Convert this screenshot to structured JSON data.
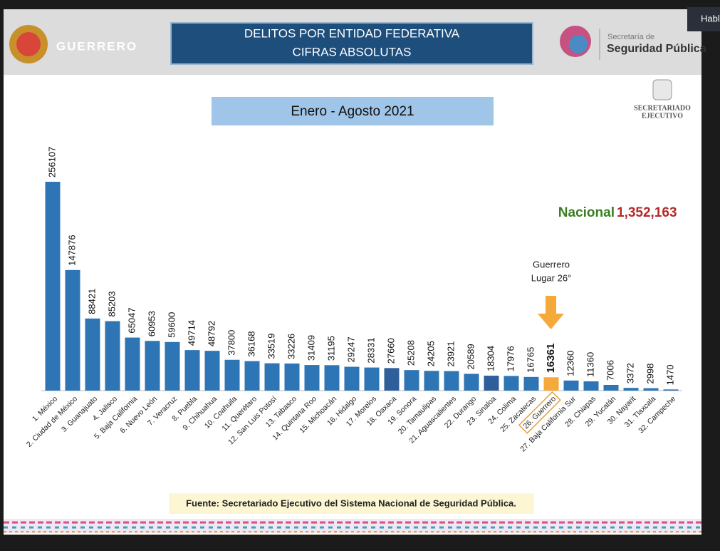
{
  "header": {
    "state_name": "GUERRERO",
    "title_line1": "DELITOS POR ENTIDAD FEDERATIVA",
    "title_line2": "CIFRAS ABSOLUTAS",
    "ssp_small": "Secretaría de",
    "ssp_big": "Seguridad Pública",
    "se_line1": "SECRETARIADO",
    "se_line2": "EJECUTIVO",
    "window_tab": "Habl"
  },
  "chart_data": {
    "type": "bar",
    "title": "Enero - Agosto 2021",
    "categories": [
      "1. México",
      "2. Ciudad de México",
      "3. Guanajuato",
      "4. Jalisco",
      "5. Baja California",
      "6. Nuevo León",
      "7. Veracruz",
      "8. Puebla",
      "9. Chihuahua",
      "10. Coahuila",
      "11. Querétaro",
      "12. San Luis Potosí",
      "13. Tabasco",
      "14. Quintana Roo",
      "15. Michoacán",
      "16. Hidalgo",
      "17. Morelos",
      "18. Oaxaca",
      "19. Sonora",
      "20. Tamaulipas",
      "21. Aguascalientes",
      "22. Durango",
      "23. Sinaloa",
      "24. Colima",
      "25. Zacatecas",
      "26. Guerrero",
      "27. Baja California Sur",
      "28. Chiapas",
      "29. Yucatán",
      "30. Nayarit",
      "31. Tlaxcala",
      "32. Campeche"
    ],
    "values": [
      256107,
      147876,
      88421,
      85203,
      65047,
      60953,
      59600,
      49714,
      48792,
      37800,
      36168,
      33519,
      33226,
      31409,
      31195,
      29247,
      28331,
      27660,
      25208,
      24205,
      23921,
      20589,
      18304,
      17976,
      16765,
      16361,
      12360,
      11360,
      7006,
      3372,
      2998,
      1470
    ],
    "colors": [
      "#2e75b6",
      "#2e75b6",
      "#2e75b6",
      "#2e75b6",
      "#2e75b6",
      "#2e75b6",
      "#2e75b6",
      "#2e75b6",
      "#2e75b6",
      "#2e75b6",
      "#2e75b6",
      "#2e75b6",
      "#2e75b6",
      "#2e75b6",
      "#2e75b6",
      "#2e75b6",
      "#2e75b6",
      "#2f5f9a",
      "#2e75b6",
      "#2e75b6",
      "#2e75b6",
      "#2e75b6",
      "#2f5f9a",
      "#2e75b6",
      "#2e75b6",
      "#f5a93b",
      "#2e75b6",
      "#2e75b6",
      "#2e75b6",
      "#2e75b6",
      "#2e75b6",
      "#2e75b6"
    ],
    "annotations": {
      "national_label": "Nacional",
      "national_value": "1,352,163",
      "guerrero_line1": "Guerrero",
      "guerrero_line2": "Lugar 26°"
    },
    "source": "Fuente: Secretariado Ejecutivo del Sistema Nacional de Seguridad Pública."
  }
}
